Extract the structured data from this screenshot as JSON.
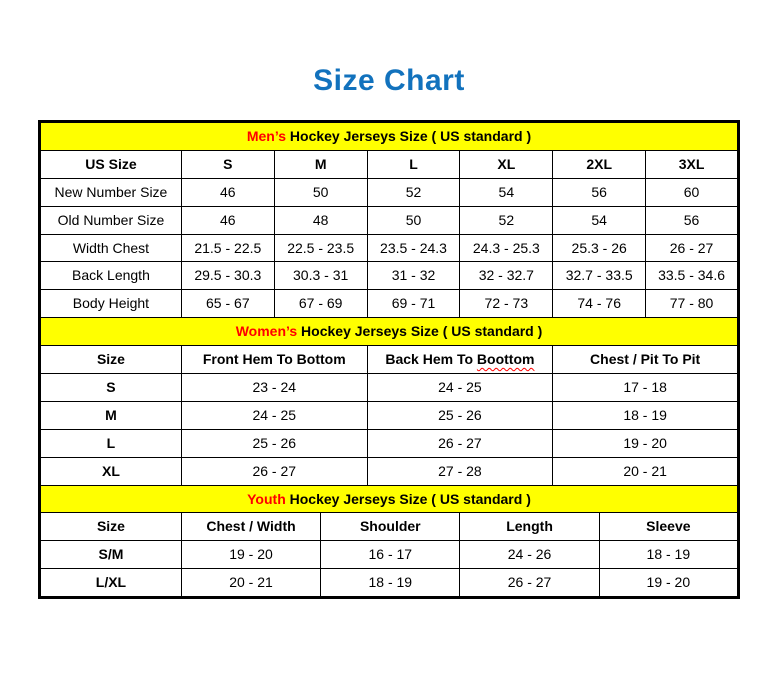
{
  "page_title": "Size Chart",
  "colors": {
    "title_blue": "#1272BD",
    "band_yellow": "#FFFF00",
    "accent_red": "#FF0000",
    "border_black": "#000000"
  },
  "sections": [
    {
      "name": "mens",
      "heading_accent": "Men’s",
      "heading_rest": " Hockey Jerseys Size ( US standard )",
      "span": 2,
      "bold_row_labels": false,
      "columns": [
        "US Size",
        "S",
        "M",
        "L",
        "XL",
        "2XL",
        "3XL"
      ],
      "rows": [
        [
          "New Number Size",
          "46",
          "50",
          "52",
          "54",
          "56",
          "60"
        ],
        [
          "Old Number Size",
          "46",
          "48",
          "50",
          "52",
          "54",
          "56"
        ],
        [
          "Width Chest",
          "21.5 - 22.5",
          "22.5 - 23.5",
          "23.5 - 24.3",
          "24.3 - 25.3",
          "25.3 - 26",
          "26 - 27"
        ],
        [
          "Back Length",
          "29.5 - 30.3",
          "30.3 - 31",
          "31 - 32",
          "32 - 32.7",
          "32.7 - 33.5",
          "33.5 - 34.6"
        ],
        [
          "Body Height",
          "65 - 67",
          "67 - 69",
          "69 - 71",
          "72 - 73",
          "74 - 76",
          "77 - 80"
        ]
      ]
    },
    {
      "name": "womens",
      "heading_accent": "Women’s",
      "heading_rest": " Hockey Jerseys Size ( US standard )",
      "span": 4,
      "bold_row_labels": true,
      "columns": [
        "Size",
        "Front Hem To Bottom",
        "Back Hem To Boottom",
        "Chest / Pit To Pit"
      ],
      "misspelled_column": 2,
      "misspelled_word": "Boottom",
      "rows": [
        [
          "S",
          "23 - 24",
          "24 - 25",
          "17 - 18"
        ],
        [
          "M",
          "24 - 25",
          "25 - 26",
          "18 - 19"
        ],
        [
          "L",
          "25 - 26",
          "26 - 27",
          "19 - 20"
        ],
        [
          "XL",
          "26 - 27",
          "27 - 28",
          "20 - 21"
        ]
      ]
    },
    {
      "name": "youth",
      "heading_accent": "Youth",
      "heading_rest": " Hockey Jerseys Size ( US standard )",
      "span": 3,
      "bold_row_labels": true,
      "columns": [
        "Size",
        "Chest / Width",
        "Shoulder",
        "Length",
        "Sleeve"
      ],
      "rows": [
        [
          "S/M",
          "19 - 20",
          "16 - 17",
          "24 - 26",
          "18 - 19"
        ],
        [
          "L/XL",
          "20 - 21",
          "18 - 19",
          "26 - 27",
          "19 - 20"
        ]
      ]
    }
  ]
}
